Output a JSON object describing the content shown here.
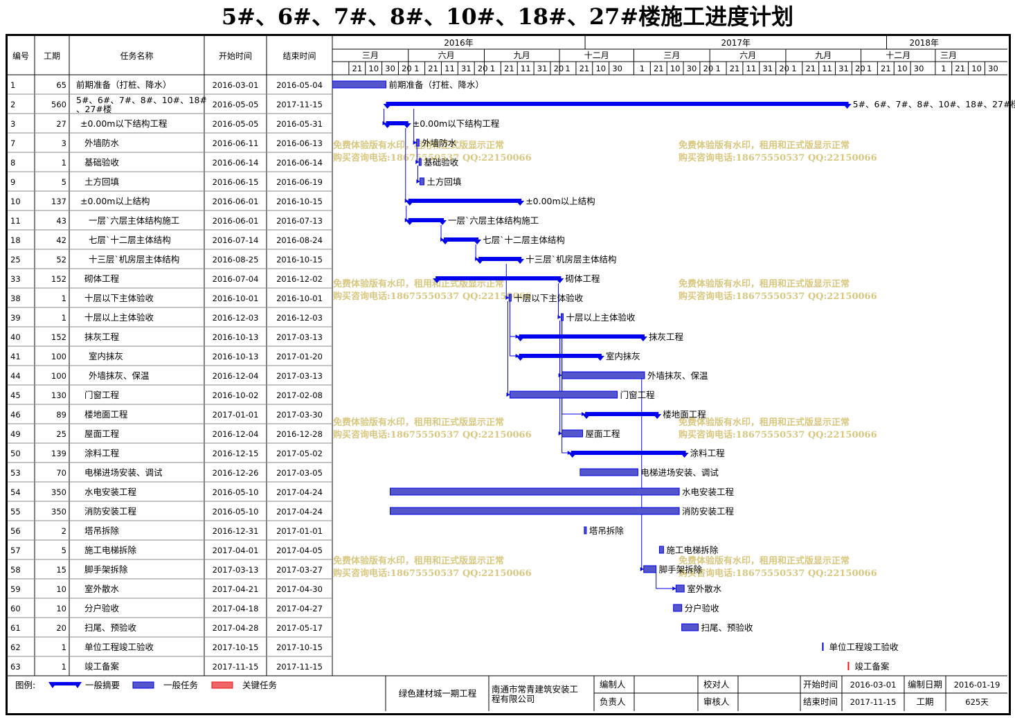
{
  "title": "5#、6#、7#、8#、10#、18#、27#楼施工进度计划",
  "columns": {
    "id": "编号",
    "duration": "工期",
    "name": "任务名称",
    "start": "开始时间",
    "end": "结束时间"
  },
  "timeline": {
    "years": [
      {
        "label": "2016年",
        "from": "2016-03-01",
        "to": "2017-01-01"
      },
      {
        "label": "2017年",
        "from": "2017-01-01",
        "to": "2018-01-01"
      },
      {
        "label": "2018年",
        "from": "2018-01-01",
        "to": "2018-04-02"
      }
    ],
    "months": [
      {
        "label": "三月",
        "from": "2016-03-01",
        "to": "2016-06-01"
      },
      {
        "label": "六月",
        "from": "2016-06-01",
        "to": "2016-09-01"
      },
      {
        "label": "九月",
        "from": "2016-09-01",
        "to": "2016-12-01"
      },
      {
        "label": "十二月",
        "from": "2016-12-01",
        "to": "2017-03-01"
      },
      {
        "label": "三月",
        "from": "2017-03-01",
        "to": "2017-06-01"
      },
      {
        "label": "六月",
        "from": "2017-06-01",
        "to": "2017-09-01"
      },
      {
        "label": "九月",
        "from": "2017-09-01",
        "to": "2017-12-01"
      },
      {
        "label": "十二月",
        "from": "2017-12-01",
        "to": "2018-03-01"
      },
      {
        "label": "三月",
        "from": "2018-03-01",
        "to": "2018-04-02"
      }
    ],
    "day_ticks": [
      {
        "label": "1",
        "date": "2016-03-01"
      },
      {
        "label": "21",
        "date": "2016-03-21"
      },
      {
        "label": "10",
        "date": "2016-04-10"
      },
      {
        "label": "30",
        "date": "2016-04-30"
      },
      {
        "label": "20",
        "date": "2016-05-20"
      },
      {
        "label": "1",
        "date": "2016-06-01"
      },
      {
        "label": "21",
        "date": "2016-06-21"
      },
      {
        "label": "11",
        "date": "2016-07-11"
      },
      {
        "label": "31",
        "date": "2016-07-31"
      },
      {
        "label": "20",
        "date": "2016-08-20"
      },
      {
        "label": "1",
        "date": "2016-09-01"
      },
      {
        "label": "21",
        "date": "2016-09-21"
      },
      {
        "label": "11",
        "date": "2016-10-11"
      },
      {
        "label": "31",
        "date": "2016-10-31"
      },
      {
        "label": "20",
        "date": "2016-11-20"
      },
      {
        "label": "1",
        "date": "2016-12-01"
      },
      {
        "label": "21",
        "date": "2016-12-21"
      },
      {
        "label": "10",
        "date": "2017-01-10"
      },
      {
        "label": "30",
        "date": "2017-01-30"
      },
      {
        "label": "1",
        "date": "2017-03-01"
      },
      {
        "label": "21",
        "date": "2017-03-21"
      },
      {
        "label": "10",
        "date": "2017-04-10"
      },
      {
        "label": "30",
        "date": "2017-04-30"
      },
      {
        "label": "20",
        "date": "2017-05-20"
      },
      {
        "label": "1",
        "date": "2017-06-01"
      },
      {
        "label": "21",
        "date": "2017-06-21"
      },
      {
        "label": "11",
        "date": "2017-07-11"
      },
      {
        "label": "31",
        "date": "2017-07-31"
      },
      {
        "label": "20",
        "date": "2017-08-20"
      },
      {
        "label": "1",
        "date": "2017-09-01"
      },
      {
        "label": "21",
        "date": "2017-09-21"
      },
      {
        "label": "11",
        "date": "2017-10-11"
      },
      {
        "label": "31",
        "date": "2017-10-31"
      },
      {
        "label": "20",
        "date": "2017-11-20"
      },
      {
        "label": "1",
        "date": "2017-12-01"
      },
      {
        "label": "21",
        "date": "2017-12-21"
      },
      {
        "label": "10",
        "date": "2018-01-10"
      },
      {
        "label": "30",
        "date": "2018-01-30"
      },
      {
        "label": "1",
        "date": "2018-03-01"
      },
      {
        "label": "21",
        "date": "2018-03-21"
      },
      {
        "label": "10",
        "date": "2018-04-10"
      },
      {
        "label": "30",
        "date": "2018-04-30"
      }
    ]
  },
  "chart_data": {
    "type": "gantt",
    "tasks": [
      {
        "id": "1",
        "duration": 65,
        "name": "前期准备（打桩、降水）",
        "name2": "",
        "indent": 0,
        "start": "2016-03-01",
        "end": "2016-05-04",
        "kind": "task",
        "bar_label": "前期准备（打桩、降水）"
      },
      {
        "id": "2",
        "duration": 560,
        "name": "5#、6#、7#、8#、10#、18#",
        "name2": "、27#楼",
        "indent": 0,
        "start": "2016-05-05",
        "end": "2017-11-15",
        "kind": "summary",
        "bar_label": "5#、6#、7#、8#、10#、18#、27#楼"
      },
      {
        "id": "3",
        "duration": 27,
        "name": "±0.00m以下结构工程",
        "name2": "",
        "indent": 1,
        "start": "2016-05-05",
        "end": "2016-05-31",
        "kind": "summary",
        "bar_label": "±0.00m以下结构工程"
      },
      {
        "id": "7",
        "duration": 3,
        "name": "外墙防水",
        "name2": "",
        "indent": 2,
        "start": "2016-06-11",
        "end": "2016-06-13",
        "kind": "task",
        "bar_label": "外墙防水"
      },
      {
        "id": "8",
        "duration": 1,
        "name": "基础验收",
        "name2": "",
        "indent": 2,
        "start": "2016-06-14",
        "end": "2016-06-14",
        "kind": "task",
        "bar_label": "基础验收"
      },
      {
        "id": "9",
        "duration": 5,
        "name": "土方回填",
        "name2": "",
        "indent": 2,
        "start": "2016-06-15",
        "end": "2016-06-19",
        "kind": "task",
        "bar_label": "土方回填"
      },
      {
        "id": "10",
        "duration": 137,
        "name": "±0.00m以上结构",
        "name2": "",
        "indent": 1,
        "start": "2016-06-01",
        "end": "2016-10-15",
        "kind": "summary",
        "bar_label": "±0.00m以上结构"
      },
      {
        "id": "11",
        "duration": 43,
        "name": "一层`六层主体结构施工",
        "name2": "",
        "indent": 3,
        "start": "2016-06-01",
        "end": "2016-07-13",
        "kind": "summary",
        "bar_label": "一层`六层主体结构施工"
      },
      {
        "id": "18",
        "duration": 42,
        "name": "七层`十二层主体结构",
        "name2": "",
        "indent": 3,
        "start": "2016-07-14",
        "end": "2016-08-24",
        "kind": "summary",
        "bar_label": "七层`十二层主体结构"
      },
      {
        "id": "25",
        "duration": 52,
        "name": "十三层`机房层主体结构",
        "name2": "",
        "indent": 3,
        "start": "2016-08-25",
        "end": "2016-10-15",
        "kind": "summary",
        "bar_label": "十三层`机房层主体结构"
      },
      {
        "id": "33",
        "duration": 152,
        "name": "砌体工程",
        "name2": "",
        "indent": 2,
        "start": "2016-07-04",
        "end": "2016-12-02",
        "kind": "summary",
        "bar_label": "砌体工程"
      },
      {
        "id": "38",
        "duration": 1,
        "name": "十层以下主体验收",
        "name2": "",
        "indent": 2,
        "start": "2016-10-01",
        "end": "2016-10-01",
        "kind": "task",
        "bar_label": "十层以下主体验收"
      },
      {
        "id": "39",
        "duration": 1,
        "name": "十层以上主体验收",
        "name2": "",
        "indent": 2,
        "start": "2016-12-03",
        "end": "2016-12-03",
        "kind": "task",
        "bar_label": "十层以上主体验收"
      },
      {
        "id": "40",
        "duration": 152,
        "name": "抹灰工程",
        "name2": "",
        "indent": 2,
        "start": "2016-10-13",
        "end": "2017-03-13",
        "kind": "summary",
        "bar_label": "抹灰工程"
      },
      {
        "id": "41",
        "duration": 100,
        "name": "室内抹灰",
        "name2": "",
        "indent": 3,
        "start": "2016-10-13",
        "end": "2017-01-20",
        "kind": "summary",
        "bar_label": "室内抹灰"
      },
      {
        "id": "44",
        "duration": 100,
        "name": "外墙抹灰、保温",
        "name2": "",
        "indent": 3,
        "start": "2016-12-04",
        "end": "2017-03-13",
        "kind": "task",
        "bar_label": "外墙抹灰、保温"
      },
      {
        "id": "45",
        "duration": 130,
        "name": "门窗工程",
        "name2": "",
        "indent": 2,
        "start": "2016-10-02",
        "end": "2017-02-08",
        "kind": "task",
        "bar_label": "门窗工程"
      },
      {
        "id": "46",
        "duration": 89,
        "name": "楼地面工程",
        "name2": "",
        "indent": 2,
        "start": "2017-01-01",
        "end": "2017-03-30",
        "kind": "summary",
        "bar_label": "楼地面工程"
      },
      {
        "id": "49",
        "duration": 25,
        "name": "屋面工程",
        "name2": "",
        "indent": 2,
        "start": "2016-12-04",
        "end": "2016-12-28",
        "kind": "task",
        "bar_label": "屋面工程"
      },
      {
        "id": "50",
        "duration": 139,
        "name": "涂料工程",
        "name2": "",
        "indent": 2,
        "start": "2016-12-15",
        "end": "2017-05-02",
        "kind": "summary",
        "bar_label": "涂料工程"
      },
      {
        "id": "53",
        "duration": 70,
        "name": "电梯进场安装、调试",
        "name2": "",
        "indent": 2,
        "start": "2016-12-26",
        "end": "2017-03-05",
        "kind": "task",
        "bar_label": "电梯进场安装、调试"
      },
      {
        "id": "54",
        "duration": 350,
        "name": "水电安装工程",
        "name2": "",
        "indent": 2,
        "start": "2016-05-10",
        "end": "2017-04-24",
        "kind": "task",
        "bar_label": "水电安装工程"
      },
      {
        "id": "55",
        "duration": 350,
        "name": "消防安装工程",
        "name2": "",
        "indent": 2,
        "start": "2016-05-10",
        "end": "2017-04-24",
        "kind": "task",
        "bar_label": "消防安装工程"
      },
      {
        "id": "56",
        "duration": 2,
        "name": "塔吊拆除",
        "name2": "",
        "indent": 2,
        "start": "2016-12-31",
        "end": "2017-01-01",
        "kind": "task",
        "bar_label": "塔吊拆除"
      },
      {
        "id": "57",
        "duration": 5,
        "name": "施工电梯拆除",
        "name2": "",
        "indent": 2,
        "start": "2017-04-01",
        "end": "2017-04-05",
        "kind": "task",
        "bar_label": "施工电梯拆除"
      },
      {
        "id": "58",
        "duration": 15,
        "name": "脚手架拆除",
        "name2": "",
        "indent": 2,
        "start": "2017-03-13",
        "end": "2017-03-27",
        "kind": "task",
        "bar_label": "脚手架拆除"
      },
      {
        "id": "59",
        "duration": 10,
        "name": "室外散水",
        "name2": "",
        "indent": 2,
        "start": "2017-04-21",
        "end": "2017-04-30",
        "kind": "task",
        "bar_label": "室外散水"
      },
      {
        "id": "60",
        "duration": 10,
        "name": "分户验收",
        "name2": "",
        "indent": 2,
        "start": "2017-04-18",
        "end": "2017-04-27",
        "kind": "task",
        "bar_label": "分户验收"
      },
      {
        "id": "61",
        "duration": 20,
        "name": "扫尾、预验收",
        "name2": "",
        "indent": 2,
        "start": "2017-04-28",
        "end": "2017-05-17",
        "kind": "task",
        "bar_label": "扫尾、预验收"
      },
      {
        "id": "62",
        "duration": 1,
        "name": "单位工程竣工验收",
        "name2": "",
        "indent": 2,
        "start": "2017-10-15",
        "end": "2017-10-15",
        "kind": "milestone",
        "bar_label": "单位工程竣工验收"
      },
      {
        "id": "63",
        "duration": 1,
        "name": "竣工备案",
        "name2": "",
        "indent": 2,
        "start": "2017-11-15",
        "end": "2017-11-15",
        "kind": "critical",
        "bar_label": "竣工备案"
      }
    ],
    "links": [
      [
        "2",
        "3"
      ],
      [
        "3",
        "10"
      ],
      [
        "7",
        "8"
      ],
      [
        "8",
        "9"
      ],
      [
        "10",
        "11"
      ],
      [
        "11",
        "18"
      ],
      [
        "18",
        "25"
      ],
      [
        "25",
        "38"
      ],
      [
        "33",
        "39"
      ],
      [
        "38",
        "40"
      ],
      [
        "38",
        "41"
      ],
      [
        "38",
        "45"
      ],
      [
        "39",
        "44"
      ],
      [
        "39",
        "46"
      ],
      [
        "39",
        "49"
      ],
      [
        "39",
        "50"
      ],
      [
        "44",
        "58"
      ],
      [
        "58",
        "59"
      ],
      [
        "2",
        "7"
      ]
    ]
  },
  "watermark": {
    "line1": "免费体验版有水印，租用和正式版显示正常",
    "line2": "购买咨询电话:18675550537 QQ:22150066"
  },
  "footer": {
    "legend_title": "图例:",
    "legend_summary": "一般摘要",
    "legend_task": "一般任务",
    "legend_critical": "关键任务",
    "project": "绿色建材城一期工程",
    "company_line1": "南通市常青建筑安装工",
    "company_line2": "程有限公司",
    "compiler": "编制人",
    "reviewer": "校对人",
    "leader": "负责人",
    "auditor": "审核人",
    "start_label": "开始时间",
    "start_value": "2016-03-01",
    "end_label": "结束时间",
    "end_value": "2017-11-15",
    "date_label": "编制日期",
    "date_value": "2016-01-19",
    "duration_label": "工期",
    "duration_value": "625天"
  },
  "colors": {
    "bar": "#0000ee",
    "task_fill": "#5555cc",
    "critical": "#ee1111",
    "border": "#000000",
    "grid": "#888888",
    "watermark": "#d4c172"
  }
}
